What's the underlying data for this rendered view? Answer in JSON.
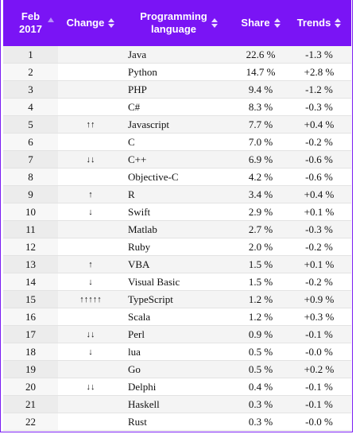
{
  "columns": {
    "rank": "Feb 2017",
    "rank_line1": "Feb",
    "rank_line2": "2017",
    "change": "Change",
    "language_line1": "Programming",
    "language_line2": "language",
    "share": "Share",
    "trends": "Trends"
  },
  "rows": [
    {
      "rank": "1",
      "change": "",
      "language": "Java",
      "share": "22.6 %",
      "trend": "-1.3 %"
    },
    {
      "rank": "2",
      "change": "",
      "language": "Python",
      "share": "14.7 %",
      "trend": "+2.8 %"
    },
    {
      "rank": "3",
      "change": "",
      "language": "PHP",
      "share": "9.4 %",
      "trend": "-1.2 %"
    },
    {
      "rank": "4",
      "change": "",
      "language": "C#",
      "share": "8.3 %",
      "trend": "-0.3 %"
    },
    {
      "rank": "5",
      "change": "↑↑",
      "language": "Javascript",
      "share": "7.7 %",
      "trend": "+0.4 %"
    },
    {
      "rank": "6",
      "change": "",
      "language": "C",
      "share": "7.0 %",
      "trend": "-0.2 %"
    },
    {
      "rank": "7",
      "change": "↓↓",
      "language": "C++",
      "share": "6.9 %",
      "trend": "-0.6 %"
    },
    {
      "rank": "8",
      "change": "",
      "language": "Objective-C",
      "share": "4.2 %",
      "trend": "-0.6 %"
    },
    {
      "rank": "9",
      "change": "↑",
      "language": "R",
      "share": "3.4 %",
      "trend": "+0.4 %"
    },
    {
      "rank": "10",
      "change": "↓",
      "language": "Swift",
      "share": "2.9 %",
      "trend": "+0.1 %"
    },
    {
      "rank": "11",
      "change": "",
      "language": "Matlab",
      "share": "2.7 %",
      "trend": "-0.3 %"
    },
    {
      "rank": "12",
      "change": "",
      "language": "Ruby",
      "share": "2.0 %",
      "trend": "-0.2 %"
    },
    {
      "rank": "13",
      "change": "↑",
      "language": "VBA",
      "share": "1.5 %",
      "trend": "+0.1 %"
    },
    {
      "rank": "14",
      "change": "↓",
      "language": "Visual Basic",
      "share": "1.5 %",
      "trend": "-0.2 %"
    },
    {
      "rank": "15",
      "change": "↑↑↑↑↑",
      "language": "TypeScript",
      "share": "1.2 %",
      "trend": "+0.9 %"
    },
    {
      "rank": "16",
      "change": "",
      "language": "Scala",
      "share": "1.2 %",
      "trend": "+0.3 %"
    },
    {
      "rank": "17",
      "change": "↓↓",
      "language": "Perl",
      "share": "0.9 %",
      "trend": "-0.1 %"
    },
    {
      "rank": "18",
      "change": "↓",
      "language": "lua",
      "share": "0.5 %",
      "trend": "-0.0 %"
    },
    {
      "rank": "19",
      "change": "",
      "language": "Go",
      "share": "0.5 %",
      "trend": "+0.2 %"
    },
    {
      "rank": "20",
      "change": "↓↓",
      "language": "Delphi",
      "share": "0.4 %",
      "trend": "-0.1 %"
    },
    {
      "rank": "21",
      "change": "",
      "language": "Haskell",
      "share": "0.3 %",
      "trend": "-0.1 %"
    },
    {
      "rank": "22",
      "change": "",
      "language": "Rust",
      "share": "0.3 %",
      "trend": "-0.0 %"
    }
  ],
  "icons": {
    "sort_asc": "sort-ascending-icon",
    "sort_both": "sort-both-icon"
  },
  "colors": {
    "header_bg": "#7a14f5",
    "header_text": "#ffffff",
    "border": "#7a1cf2"
  }
}
